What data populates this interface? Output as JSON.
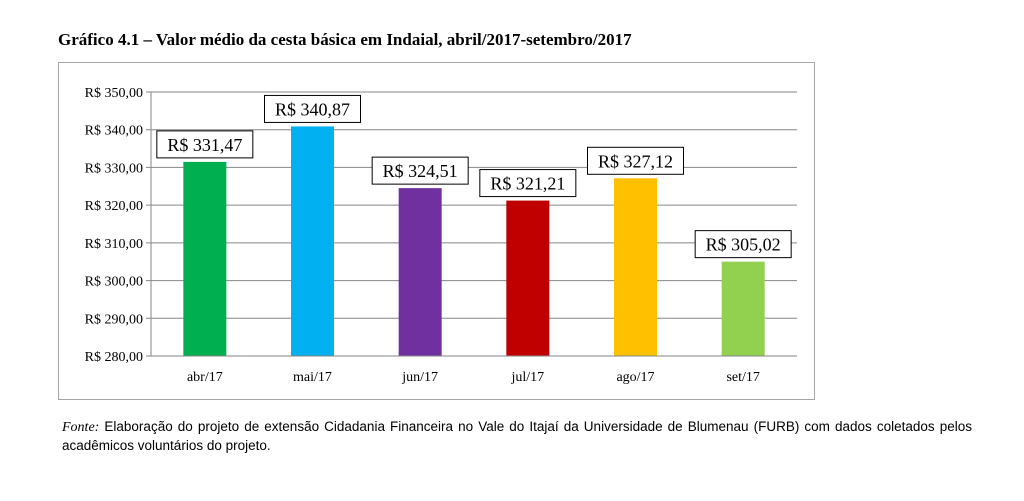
{
  "title": "Gráfico 4.1 – Valor médio da cesta básica em Indaial, abril/2017-setembro/2017",
  "source": {
    "prefix": "Fonte:",
    "text": "Elaboração do projeto de extensão Cidadania Financeira no Vale do Itajaí da Universidade de Blumenau (FURB) com dados coletados pelos acadêmicos voluntários do projeto."
  },
  "chart_data": {
    "type": "bar",
    "categories": [
      "abr/17",
      "mai/17",
      "jun/17",
      "jul/17",
      "ago/17",
      "set/17"
    ],
    "values": [
      331.47,
      340.87,
      324.51,
      321.21,
      327.12,
      305.02
    ],
    "data_labels": [
      "R$ 331,47",
      "R$ 340,87",
      "R$ 324,51",
      "R$ 321,21",
      "R$ 327,12",
      "R$ 305,02"
    ],
    "colors": [
      "#00b050",
      "#00b0f0",
      "#7030a0",
      "#c00000",
      "#ffc000",
      "#92d050"
    ],
    "ylim": [
      280,
      350
    ],
    "yticks": [
      280,
      290,
      300,
      310,
      320,
      330,
      340,
      350
    ],
    "ytick_labels": [
      "R$ 280,00",
      "R$ 290,00",
      "R$ 300,00",
      "R$ 310,00",
      "R$ 320,00",
      "R$ 330,00",
      "R$ 340,00",
      "R$ 350,00"
    ],
    "grid": true,
    "legend": false
  }
}
